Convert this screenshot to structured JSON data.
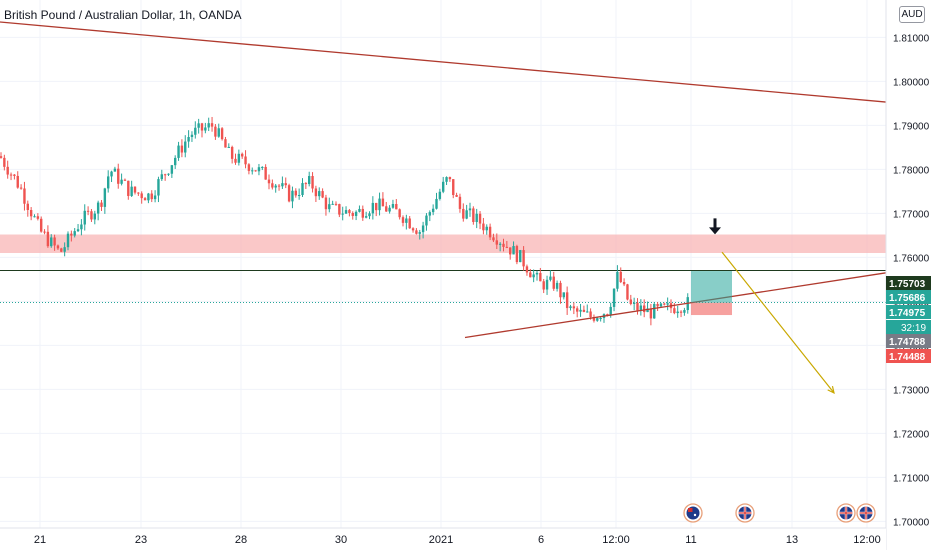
{
  "header": {
    "title": "British Pound / Australian Dollar, 1h, OANDA",
    "currency": "AUD"
  },
  "chart_data": {
    "type": "candlestick",
    "title": "British Pound / Australian Dollar, 1h, OANDA",
    "y_range": [
      1.6985,
      1.8185
    ],
    "x_range_index": [
      0,
      886
    ],
    "x_ticks": [
      {
        "label": "21",
        "x": 40
      },
      {
        "label": "23",
        "x": 141
      },
      {
        "label": "28",
        "x": 241
      },
      {
        "label": "30",
        "x": 341
      },
      {
        "label": "2021",
        "x": 441
      },
      {
        "label": "6",
        "x": 541
      },
      {
        "label": "12:00",
        "x": 616
      },
      {
        "label": "11",
        "x": 691
      },
      {
        "label": "13",
        "x": 792
      },
      {
        "label": "12:00",
        "x": 867
      }
    ],
    "y_ticks": [
      1.7,
      1.71,
      1.72,
      1.73,
      1.74,
      1.75,
      1.76,
      1.77,
      1.78,
      1.79,
      1.8,
      1.81
    ],
    "y_tick_labels": [
      "1.70000",
      "1.71000",
      "1.72000",
      "1.73000",
      "1.74000",
      "1.75000",
      "1.76000",
      "1.77000",
      "1.78000",
      "1.79000",
      "1.80000",
      "1.81000"
    ],
    "price_labels": [
      {
        "value": 1.75703,
        "text": "1.75703",
        "bg": "#1e3a1e",
        "fg": "#ffffff"
      },
      {
        "value": 1.75686,
        "text": "1.75686",
        "bg": "#26a69a",
        "fg": "#ffffff"
      },
      {
        "value": 1.74975,
        "text": "1.74975",
        "bg": "#26a69a",
        "fg": "#ffffff"
      },
      {
        "value": 1.74788,
        "text": "1.74788",
        "bg": "#787b86",
        "fg": "#ffffff"
      },
      {
        "value": 1.74488,
        "text": "1.74488",
        "bg": "#ef5350",
        "fg": "#ffffff"
      }
    ],
    "countdown": "32:19",
    "close_path": [
      [
        0,
        1.783
      ],
      [
        20,
        1.776
      ],
      [
        40,
        1.766
      ],
      [
        60,
        1.761
      ],
      [
        80,
        1.768
      ],
      [
        100,
        1.772
      ],
      [
        110,
        1.78
      ],
      [
        130,
        1.775
      ],
      [
        150,
        1.774
      ],
      [
        170,
        1.781
      ],
      [
        190,
        1.788
      ],
      [
        213,
        1.79
      ],
      [
        230,
        1.783
      ],
      [
        250,
        1.781
      ],
      [
        270,
        1.778
      ],
      [
        290,
        1.774
      ],
      [
        310,
        1.777
      ],
      [
        330,
        1.771
      ],
      [
        355,
        1.77
      ],
      [
        375,
        1.772
      ],
      [
        400,
        1.77
      ],
      [
        420,
        1.766
      ],
      [
        440,
        1.775
      ],
      [
        448,
        1.778
      ],
      [
        460,
        1.771
      ],
      [
        480,
        1.768
      ],
      [
        500,
        1.764
      ],
      [
        520,
        1.76
      ],
      [
        540,
        1.754
      ],
      [
        555,
        1.754
      ],
      [
        570,
        1.748
      ],
      [
        590,
        1.7465
      ],
      [
        608,
        1.748
      ],
      [
        618,
        1.756
      ],
      [
        630,
        1.749
      ],
      [
        650,
        1.7475
      ],
      [
        670,
        1.7485
      ],
      [
        690,
        1.7497
      ]
    ],
    "zone": {
      "from": 1.761,
      "to": 1.7652,
      "color": "#f8b6b6"
    },
    "horizontal_line": {
      "value": 1.75703,
      "color": "#1e3a1e"
    },
    "last_price_line": {
      "value": 1.74975,
      "color": "#26a69a"
    },
    "trendlines": [
      {
        "x1": 0,
        "y1": 1.8135,
        "x2": 886,
        "y2": 1.7953,
        "color": "#b03a2e"
      },
      {
        "x1": 465,
        "y1": 1.7418,
        "x2": 886,
        "y2": 1.7565,
        "color": "#b03a2e"
      }
    ],
    "position": {
      "x1": 691,
      "x2": 732,
      "entry": 1.7497,
      "target": 1.7569,
      "stop": 1.7469
    },
    "projection_arrow": {
      "x1": 722,
      "y1": 1.7612,
      "x2": 834,
      "y2": 1.7292,
      "color": "#c9a800"
    },
    "sell_arrow": {
      "x": 715,
      "y": 1.7666
    },
    "event_flags": [
      {
        "x": 693,
        "type": "AU"
      },
      {
        "x": 745,
        "type": "UK"
      },
      {
        "x": 846,
        "type": "UK"
      },
      {
        "x": 866,
        "type": "UK"
      }
    ],
    "colors": {
      "up": "#26a69a",
      "down": "#ef5350",
      "grid": "#f0f3fa",
      "axis_text": "#131722"
    }
  }
}
